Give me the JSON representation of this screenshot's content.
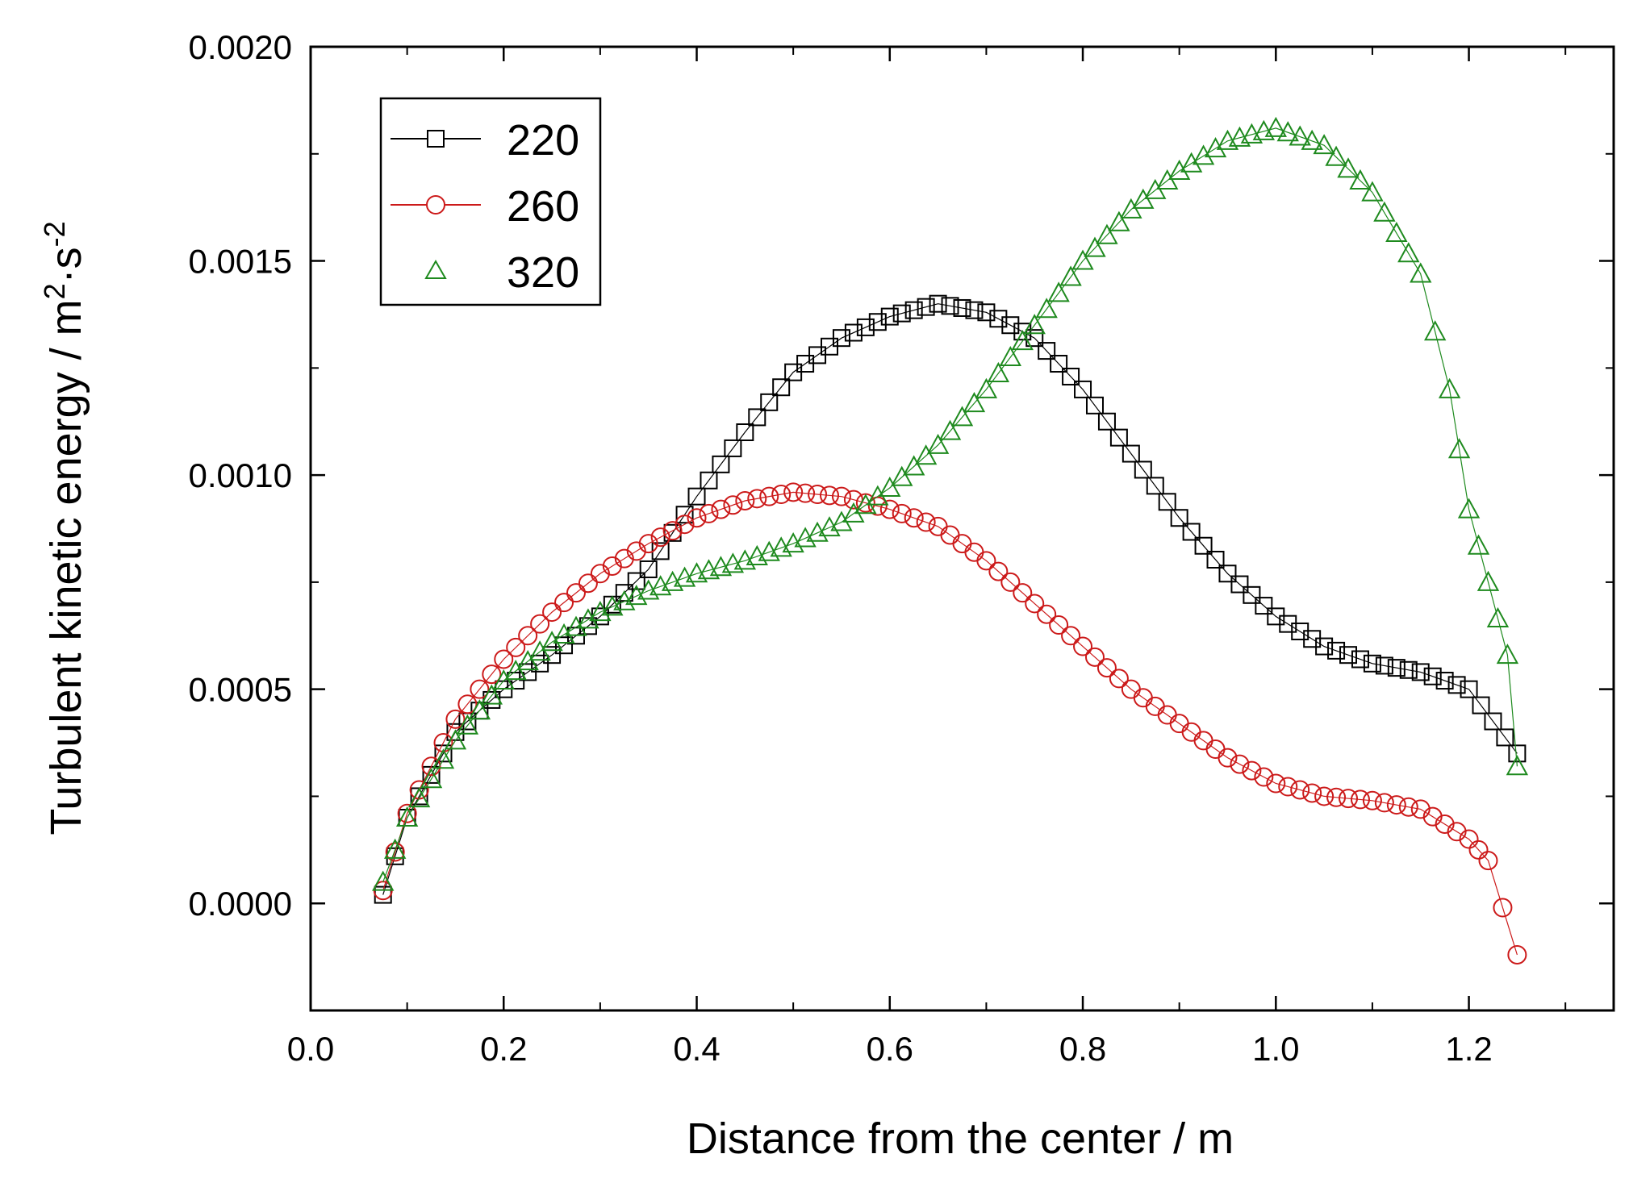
{
  "chart_data": {
    "type": "scatter",
    "title": "",
    "xlabel": "Distance from the center / m",
    "ylabel_main": "Turbulent kinetic energy / m",
    "ylabel_sup1": "2",
    "ylabel_mid": "·s",
    "ylabel_sup2": "-2",
    "xlim": [
      0.0,
      1.35
    ],
    "ylim": [
      -0.00025,
      0.002
    ],
    "xticks": [
      0.0,
      0.2,
      0.4,
      0.6,
      0.8,
      1.0,
      1.2
    ],
    "xtick_labels": [
      "0.0",
      "0.2",
      "0.4",
      "0.6",
      "0.8",
      "1.0",
      "1.2"
    ],
    "yticks": [
      0.0,
      0.0005,
      0.001,
      0.0015,
      0.002
    ],
    "ytick_labels": [
      "0.0000",
      "0.0005",
      "0.0010",
      "0.0015",
      "0.0020"
    ],
    "legend_position": "top-left",
    "series": [
      {
        "name": "220",
        "marker": "square",
        "color": "#000000",
        "points": [
          [
            0.075,
            2e-05
          ],
          [
            0.1,
            0.0002
          ],
          [
            0.15,
            0.0004
          ],
          [
            0.2,
            0.0005
          ],
          [
            0.25,
            0.00058
          ],
          [
            0.3,
            0.00067
          ],
          [
            0.35,
            0.00078
          ],
          [
            0.4,
            0.00095
          ],
          [
            0.45,
            0.0011
          ],
          [
            0.5,
            0.00124
          ],
          [
            0.55,
            0.00132
          ],
          [
            0.6,
            0.00137
          ],
          [
            0.65,
            0.0014
          ],
          [
            0.7,
            0.00138
          ],
          [
            0.75,
            0.00132
          ],
          [
            0.8,
            0.0012
          ],
          [
            0.85,
            0.00105
          ],
          [
            0.9,
            0.0009
          ],
          [
            0.95,
            0.00077
          ],
          [
            1.0,
            0.00067
          ],
          [
            1.05,
            0.0006
          ],
          [
            1.1,
            0.00056
          ],
          [
            1.15,
            0.00054
          ],
          [
            1.2,
            0.0005
          ],
          [
            1.25,
            0.00035
          ]
        ]
      },
      {
        "name": "260",
        "marker": "circle",
        "color": "#cc1a1a",
        "points": [
          [
            0.075,
            3e-05
          ],
          [
            0.1,
            0.00021
          ],
          [
            0.15,
            0.00043
          ],
          [
            0.2,
            0.00057
          ],
          [
            0.25,
            0.00068
          ],
          [
            0.3,
            0.00077
          ],
          [
            0.35,
            0.00084
          ],
          [
            0.4,
            0.0009
          ],
          [
            0.45,
            0.00094
          ],
          [
            0.5,
            0.00096
          ],
          [
            0.55,
            0.00095
          ],
          [
            0.6,
            0.00092
          ],
          [
            0.65,
            0.00088
          ],
          [
            0.7,
            0.0008
          ],
          [
            0.75,
            0.0007
          ],
          [
            0.8,
            0.0006
          ],
          [
            0.85,
            0.0005
          ],
          [
            0.9,
            0.00042
          ],
          [
            0.95,
            0.00034
          ],
          [
            1.0,
            0.00028
          ],
          [
            1.05,
            0.00025
          ],
          [
            1.1,
            0.00024
          ],
          [
            1.15,
            0.00022
          ],
          [
            1.2,
            0.00015
          ],
          [
            1.22,
            0.0001
          ],
          [
            1.25,
            -0.00012
          ]
        ]
      },
      {
        "name": "320",
        "marker": "triangle",
        "color": "#1e8a1e",
        "points": [
          [
            0.075,
            5e-05
          ],
          [
            0.1,
            0.0002
          ],
          [
            0.15,
            0.00038
          ],
          [
            0.2,
            0.00052
          ],
          [
            0.25,
            0.00061
          ],
          [
            0.3,
            0.00068
          ],
          [
            0.35,
            0.00073
          ],
          [
            0.4,
            0.00077
          ],
          [
            0.45,
            0.0008
          ],
          [
            0.5,
            0.00084
          ],
          [
            0.55,
            0.00089
          ],
          [
            0.6,
            0.00097
          ],
          [
            0.65,
            0.00107
          ],
          [
            0.7,
            0.0012
          ],
          [
            0.75,
            0.00135
          ],
          [
            0.8,
            0.0015
          ],
          [
            0.85,
            0.00162
          ],
          [
            0.9,
            0.00171
          ],
          [
            0.95,
            0.00178
          ],
          [
            1.0,
            0.00181
          ],
          [
            1.05,
            0.00177
          ],
          [
            1.1,
            0.00166
          ],
          [
            1.15,
            0.00147
          ],
          [
            1.18,
            0.0012
          ],
          [
            1.2,
            0.00092
          ],
          [
            1.22,
            0.00075
          ],
          [
            1.24,
            0.00058
          ],
          [
            1.25,
            0.00032
          ]
        ]
      }
    ]
  }
}
